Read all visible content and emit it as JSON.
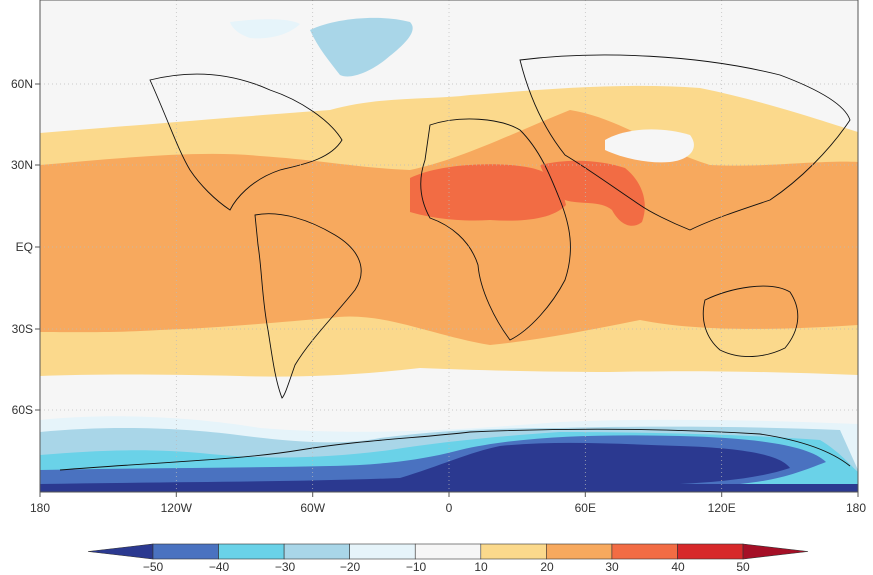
{
  "map": {
    "lon_ticks": [
      "180",
      "120W",
      "60W",
      "0",
      "60E",
      "120E",
      "180"
    ],
    "lat_ticks": [
      "60N",
      "30N",
      "EQ",
      "30S",
      "60S"
    ]
  },
  "colorbar": {
    "labels": [
      "−50",
      "−40",
      "−30",
      "−20",
      "−10",
      "10",
      "20",
      "30",
      "40",
      "50"
    ],
    "colors": [
      "#2b3990",
      "#4a72c0",
      "#6ad2e8",
      "#a9d6e8",
      "#e6f4fa",
      "#f6f6f6",
      "#fbd98c",
      "#f7a95e",
      "#f26c44",
      "#d7282a",
      "#a50f26"
    ]
  },
  "fields": {
    "ocean": "#f6f6f6",
    "tropics": "#f7a95e",
    "subtropics": "#fbd98c",
    "desert": "#f26c44",
    "antarctic_edge": "#a9d6e8",
    "antarctic_mid": "#6ad2e8",
    "antarctic_deep": "#4a72c0",
    "antarctic_core": "#2b3990"
  }
}
